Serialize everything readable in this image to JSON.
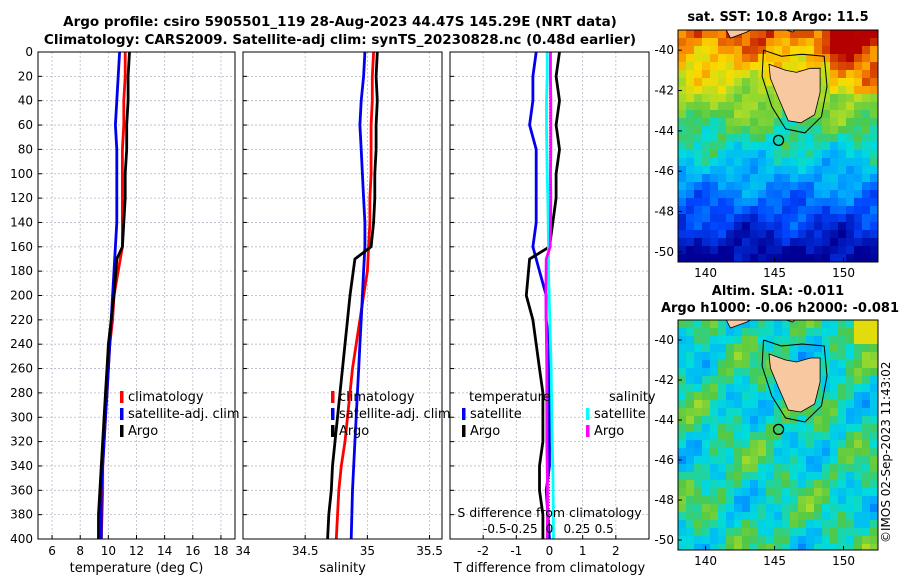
{
  "header": {
    "title_line1": "Argo profile: csiro 5905501_119 28-Aug-2023 44.47S 145.29E (NRT data)",
    "title_line2": "Climatology: CARS2009. Satellite-adj clim: synTS_20230828.nc (0.48d earlier)"
  },
  "timestamp": "©IMOS 02-Sep-2023 11:43:02",
  "colors": {
    "climatology": "#ff0000",
    "satellite": "#0000ee",
    "argo": "#000000",
    "s_satellite": "#00ffff",
    "s_argo": "#ff00ff",
    "grid": "#b8b8c8",
    "land": "#f8c8a0"
  },
  "chart_data": [
    {
      "type": "line",
      "name": "temperature-profile",
      "xlabel": "temperature (deg C)",
      "ylabel": "",
      "xlim": [
        5,
        19
      ],
      "ylim": [
        0,
        400
      ],
      "y_reversed": true,
      "xticks": [
        6,
        8,
        10,
        12,
        14,
        16,
        18
      ],
      "yticks": [
        0,
        20,
        40,
        60,
        80,
        100,
        120,
        140,
        160,
        180,
        200,
        220,
        240,
        260,
        280,
        300,
        320,
        340,
        360,
        380,
        400
      ],
      "legend": [
        "climatology",
        "satellite-adj. clim",
        "Argo"
      ],
      "series": [
        {
          "name": "climatology",
          "color": "#ff0000",
          "x": [
            11.2,
            11.2,
            11.1,
            11.1,
            11.0,
            11.0,
            11.0,
            11.0,
            11.0,
            10.7,
            10.4,
            10.3,
            10.1,
            10.0,
            9.9,
            9.8,
            9.7,
            9.6,
            9.6,
            9.5
          ],
          "y": [
            0,
            20,
            40,
            60,
            80,
            100,
            120,
            140,
            160,
            180,
            200,
            220,
            240,
            260,
            280,
            300,
            320,
            340,
            360,
            400
          ]
        },
        {
          "name": "satellite-adj. clim",
          "color": "#0000ee",
          "x": [
            10.8,
            10.7,
            10.6,
            10.5,
            10.6,
            10.6,
            10.6,
            10.6,
            10.5,
            10.4,
            10.3,
            10.2,
            10.1,
            10.0,
            9.9,
            9.8,
            9.7,
            9.6,
            9.5,
            9.5
          ],
          "y": [
            0,
            20,
            40,
            60,
            80,
            100,
            120,
            140,
            160,
            180,
            200,
            220,
            240,
            260,
            280,
            300,
            320,
            340,
            360,
            400
          ]
        },
        {
          "name": "Argo",
          "color": "#000000",
          "x": [
            11.5,
            11.4,
            11.4,
            11.3,
            11.3,
            11.2,
            11.2,
            11.1,
            11.0,
            10.6,
            10.4,
            10.2,
            10.0,
            9.9,
            9.8,
            9.7,
            9.6,
            9.5,
            9.4,
            9.3,
            9.3
          ],
          "y": [
            0,
            20,
            40,
            60,
            80,
            100,
            120,
            140,
            160,
            170,
            200,
            220,
            240,
            260,
            280,
            300,
            320,
            340,
            360,
            380,
            400
          ]
        }
      ]
    },
    {
      "type": "line",
      "name": "salinity-profile",
      "xlabel": "salinity",
      "xlim": [
        34,
        35.6
      ],
      "ylim": [
        0,
        400
      ],
      "y_reversed": true,
      "xticks": [
        34,
        34.5,
        35,
        35.5
      ],
      "legend": [
        "climatology",
        "satellite-adj. clim",
        "Argo"
      ],
      "series": [
        {
          "name": "climatology",
          "color": "#ff0000",
          "x": [
            35.05,
            35.04,
            35.04,
            35.03,
            35.03,
            35.03,
            35.02,
            35.02,
            35.01,
            35.0,
            34.97,
            34.94,
            34.91,
            34.88,
            34.86,
            34.84,
            34.82,
            34.79,
            34.77,
            34.75
          ],
          "y": [
            0,
            20,
            40,
            60,
            80,
            100,
            120,
            140,
            160,
            180,
            200,
            220,
            240,
            260,
            280,
            300,
            320,
            340,
            360,
            400
          ]
        },
        {
          "name": "satellite-adj. clim",
          "color": "#0000ee",
          "x": [
            34.98,
            34.97,
            34.95,
            34.94,
            34.95,
            34.96,
            34.97,
            34.98,
            34.98,
            34.97,
            34.96,
            34.95,
            34.94,
            34.93,
            34.92,
            34.91,
            34.9,
            34.89,
            34.88,
            34.87
          ],
          "y": [
            0,
            20,
            40,
            60,
            80,
            100,
            120,
            140,
            160,
            180,
            200,
            220,
            240,
            260,
            280,
            300,
            320,
            340,
            360,
            400
          ]
        },
        {
          "name": "Argo",
          "color": "#000000",
          "x": [
            35.08,
            35.07,
            35.08,
            35.07,
            35.07,
            35.06,
            35.06,
            35.05,
            35.03,
            34.9,
            34.86,
            34.84,
            34.82,
            34.8,
            34.78,
            34.76,
            34.74,
            34.72,
            34.71,
            34.69,
            34.68
          ],
          "y": [
            0,
            20,
            40,
            60,
            80,
            100,
            120,
            140,
            160,
            170,
            200,
            220,
            240,
            260,
            280,
            300,
            320,
            340,
            360,
            380,
            400
          ]
        }
      ]
    },
    {
      "type": "line",
      "name": "difference-profile",
      "xlabel": "T difference from climatology",
      "top_label": "S difference from climatology",
      "xlim": [
        -3,
        3
      ],
      "ylim": [
        0,
        400
      ],
      "y_reversed": true,
      "xticks": [
        -2,
        -1,
        0,
        1,
        2
      ],
      "xtick_labels": [
        "-2",
        "-1",
        "0",
        "1",
        "2"
      ],
      "sticks": [
        -0.5,
        -0.25,
        0,
        0.25,
        0.5
      ],
      "stick_labels": [
        "-0.5",
        "-0.25",
        "0",
        "0.25",
        "0.5"
      ],
      "legend_headers": [
        "temperature",
        "salinity"
      ],
      "legend": [
        "satellite",
        "Argo",
        "satellite",
        "Argo"
      ],
      "series": [
        {
          "name": "T satellite",
          "color": "#0000ee",
          "x": [
            -0.4,
            -0.5,
            -0.5,
            -0.6,
            -0.4,
            -0.4,
            -0.4,
            -0.4,
            -0.5,
            -0.3,
            -0.1,
            -0.1,
            0.0,
            0.0,
            0.0,
            0.0,
            0.0,
            0.0,
            -0.1,
            0.0
          ],
          "y": [
            0,
            20,
            40,
            60,
            80,
            100,
            120,
            140,
            160,
            180,
            200,
            220,
            240,
            260,
            280,
            300,
            320,
            340,
            360,
            400
          ]
        },
        {
          "name": "T Argo",
          "color": "#000000",
          "x": [
            0.3,
            0.2,
            0.3,
            0.2,
            0.3,
            0.2,
            0.2,
            0.1,
            0.0,
            -0.6,
            -0.7,
            -0.5,
            -0.4,
            -0.3,
            -0.2,
            -0.2,
            -0.2,
            -0.3,
            -0.3,
            -0.2,
            -0.2
          ],
          "y": [
            0,
            20,
            40,
            60,
            80,
            100,
            120,
            140,
            160,
            170,
            200,
            220,
            240,
            260,
            280,
            300,
            320,
            340,
            360,
            380,
            400
          ]
        },
        {
          "name": "S satellite",
          "color": "#00ffff",
          "x": [
            -0.07,
            -0.07,
            -0.09,
            -0.09,
            -0.08,
            -0.07,
            -0.05,
            -0.04,
            -0.03,
            -0.03,
            -0.01,
            0.01,
            0.03,
            0.05,
            0.06,
            0.07,
            0.08,
            0.1,
            0.11,
            0.12
          ],
          "y": [
            0,
            20,
            40,
            60,
            80,
            100,
            120,
            140,
            160,
            180,
            200,
            220,
            240,
            260,
            280,
            300,
            320,
            340,
            360,
            400
          ]
        },
        {
          "name": "S Argo",
          "color": "#ff00ff",
          "x": [
            0.03,
            0.03,
            0.04,
            0.04,
            0.04,
            0.03,
            0.04,
            0.03,
            0.02,
            -0.1,
            -0.11,
            -0.1,
            -0.09,
            -0.08,
            -0.08,
            -0.08,
            -0.08,
            -0.07,
            -0.06,
            -0.06,
            -0.07
          ],
          "y": [
            0,
            20,
            40,
            60,
            80,
            100,
            120,
            140,
            160,
            170,
            200,
            220,
            240,
            260,
            280,
            300,
            320,
            340,
            360,
            380,
            400
          ]
        }
      ]
    },
    {
      "type": "heatmap",
      "name": "sst-map",
      "title": "sat. SST: 10.8 Argo: 11.5",
      "xlim": [
        138,
        152.5
      ],
      "ylim": [
        -50.5,
        -39
      ],
      "xticks": [
        140,
        145,
        150
      ],
      "yticks": [
        -40,
        -42,
        -44,
        -46,
        -48,
        -50
      ],
      "marker": {
        "lon": 145.29,
        "lat": -44.47
      }
    },
    {
      "type": "heatmap",
      "name": "sla-map",
      "title_line1": "Altim. SLA: -0.011",
      "title_line2": "Argo h1000: -0.06 h2000: -0.081",
      "xlim": [
        138,
        152.5
      ],
      "ylim": [
        -50.5,
        -39
      ],
      "xticks": [
        140,
        145,
        150
      ],
      "yticks": [
        -40,
        -42,
        -44,
        -46,
        -48,
        -50
      ],
      "marker": {
        "lon": 145.29,
        "lat": -44.47
      }
    }
  ]
}
